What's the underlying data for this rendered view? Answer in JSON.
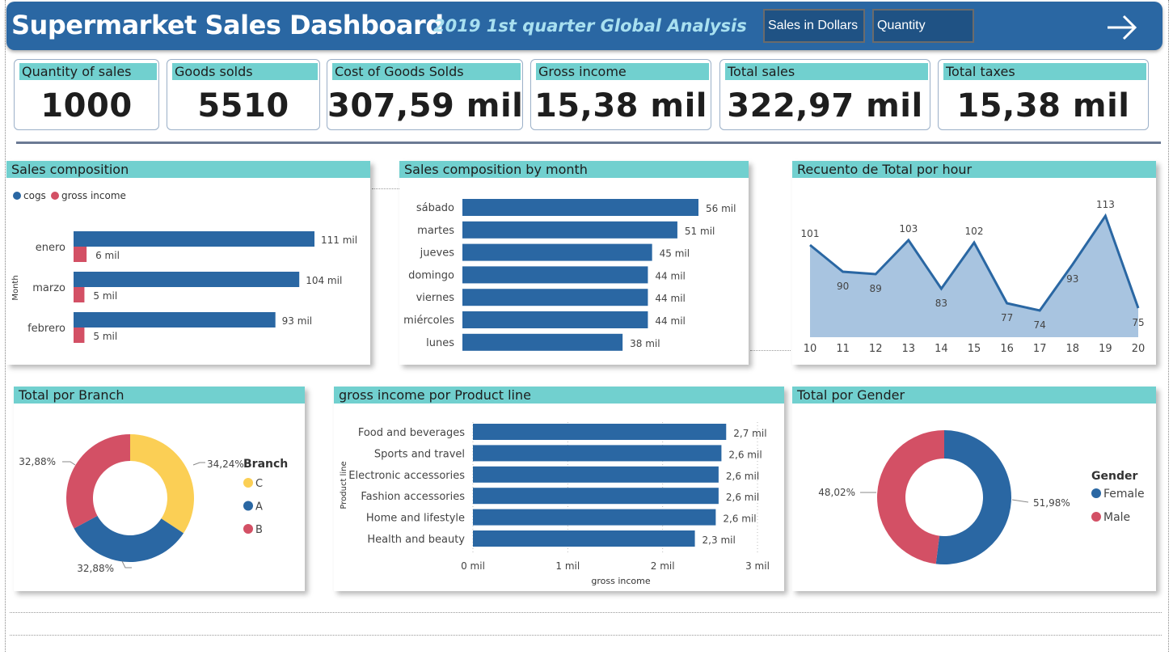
{
  "header": {
    "title": "Supermarket Sales Dashboard",
    "subtitle": "2019 1st quarter Global Analysis",
    "buttons": [
      "Sales in Dollars",
      "Quantity"
    ],
    "nav_icon": "arrow-right-icon"
  },
  "kpis": [
    {
      "label": "Quantity of sales",
      "value": "1000"
    },
    {
      "label": "Goods solds",
      "value": "5510"
    },
    {
      "label": "Cost of Goods Solds",
      "value": "307,59 mil"
    },
    {
      "label": "Gross income",
      "value": "15,38 mil"
    },
    {
      "label": "Total sales",
      "value": "322,97 mil"
    },
    {
      "label": "Total taxes",
      "value": "15,38 mil"
    }
  ],
  "colors": {
    "primary": "#2a67a3",
    "accent": "#71d0cf",
    "red": "#d35065",
    "yellow": "#fbcf55",
    "area": "#a8c4e0"
  },
  "chart_data": [
    {
      "type": "bar",
      "title": "Sales composition",
      "ylabel": "Month",
      "categories": [
        "enero",
        "marzo",
        "febrero"
      ],
      "series": [
        {
          "name": "cogs",
          "values": [
            111,
            104,
            93
          ],
          "labels": [
            "111 mil",
            "104 mil",
            "93 mil"
          ]
        },
        {
          "name": "gross income",
          "values": [
            6,
            5,
            5
          ],
          "labels": [
            "6 mil",
            "5 mil",
            "5 mil"
          ]
        }
      ],
      "legend": "top-left"
    },
    {
      "type": "bar",
      "title": "Sales composition by month",
      "categories": [
        "sábado",
        "martes",
        "jueves",
        "domingo",
        "viernes",
        "miércoles",
        "lunes"
      ],
      "values": [
        56,
        51,
        45,
        44,
        44,
        44,
        38
      ],
      "labels": [
        "56 mil",
        "51 mil",
        "45 mil",
        "44 mil",
        "44 mil",
        "44 mil",
        "38 mil"
      ]
    },
    {
      "type": "area",
      "title": "Recuento de Total por hour",
      "x": [
        10,
        11,
        12,
        13,
        14,
        15,
        16,
        17,
        18,
        19,
        20
      ],
      "values": [
        101,
        90,
        89,
        103,
        83,
        102,
        77,
        74,
        93,
        113,
        75
      ],
      "ylim": [
        63,
        123
      ]
    },
    {
      "type": "pie",
      "title": "Total por Branch",
      "legend_title": "Branch",
      "categories": [
        "C",
        "A",
        "B"
      ],
      "values": [
        34.24,
        32.88,
        32.88
      ],
      "labels": [
        "34,24%",
        "32,88%",
        "32,88%"
      ]
    },
    {
      "type": "bar",
      "title": "gross income por Product line",
      "xlabel": "gross income",
      "ylabel": "Product line",
      "categories": [
        "Food and beverages",
        "Sports and travel",
        "Electronic accessories",
        "Fashion accessories",
        "Home and lifestyle",
        "Health and beauty"
      ],
      "values": [
        2.67,
        2.62,
        2.59,
        2.59,
        2.56,
        2.34
      ],
      "labels": [
        "2,7 mil",
        "2,6 mil",
        "2,6 mil",
        "2,6 mil",
        "2,6 mil",
        "2,3 mil"
      ],
      "ticks": [
        "0 mil",
        "1 mil",
        "2 mil",
        "3 mil"
      ],
      "xlim": [
        0,
        3
      ]
    },
    {
      "type": "pie",
      "title": "Total por Gender",
      "legend_title": "Gender",
      "categories": [
        "Female",
        "Male"
      ],
      "values": [
        51.98,
        48.02
      ],
      "labels": [
        "51,98%",
        "48,02%"
      ]
    }
  ]
}
